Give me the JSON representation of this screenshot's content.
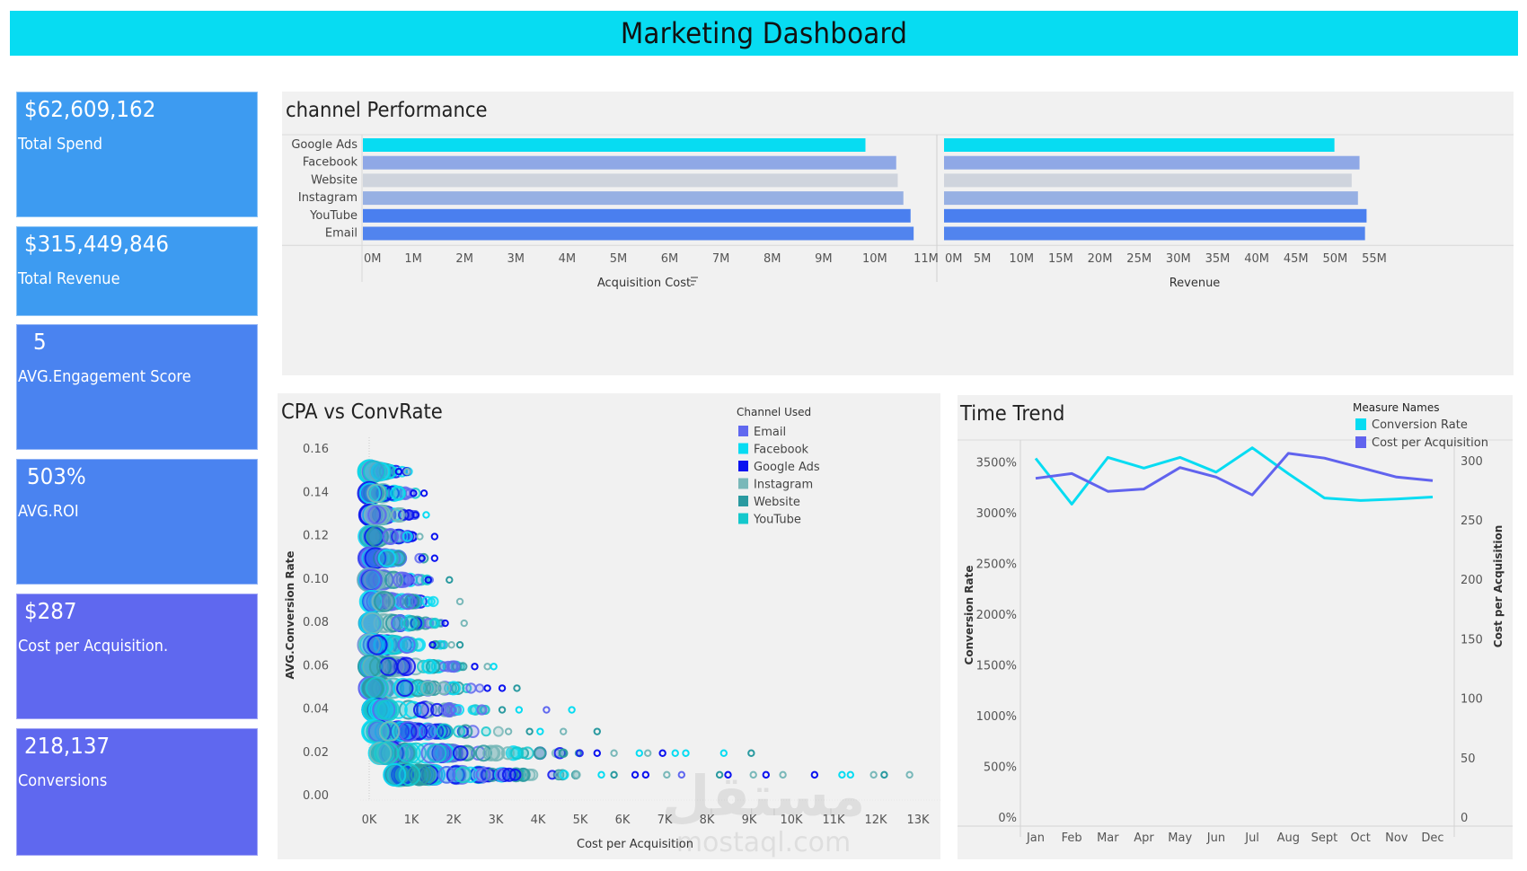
{
  "header": {
    "title": "Marketing Dashboard"
  },
  "kpis": [
    {
      "value": "$62,609,162",
      "label": "Total Spend",
      "color": "#3d9bf1"
    },
    {
      "value": "$315,449,846",
      "label": "Total Revenue",
      "color": "#3d9bf1"
    },
    {
      "value": "5",
      "label": "AVG.Engagement Score",
      "color": "#4a83f0"
    },
    {
      "value": "503%",
      "label": "AVG.ROI",
      "color": "#4a83f0"
    },
    {
      "value": "$287",
      "label": "Cost per Acquisition.",
      "color": "#5f68ef"
    },
    {
      "value": "218,137",
      "label": "Conversions",
      "color": "#5f68ef"
    }
  ],
  "channel_performance": {
    "title": "channel Performance"
  },
  "scatter": {
    "title": "CPA vs ConvRate"
  },
  "time_trend": {
    "title": "Time Trend"
  },
  "watermark": {
    "arabic": "مستقل",
    "latin": "mostaql.com"
  },
  "chart_data": [
    {
      "type": "bar",
      "orientation": "horizontal",
      "title": "channel Performance",
      "categories": [
        "Google Ads",
        "Facebook",
        "Website",
        "Instagram",
        "YouTube",
        "Email"
      ],
      "colors": [
        "#07dcf2",
        "#8fa8e6",
        "#cfd4dd",
        "#97b0e3",
        "#4a7fef",
        "#5184ee"
      ],
      "charts": [
        {
          "xlabel": "Acquisition Cost",
          "sort_icon": "sort-descending-icon",
          "values": [
            9800000,
            10400000,
            10430000,
            10540000,
            10680000,
            10740000
          ],
          "xlim": [
            0,
            11000000
          ],
          "ticks": [
            0,
            1000000,
            2000000,
            3000000,
            4000000,
            5000000,
            6000000,
            7000000,
            8000000,
            9000000,
            10000000,
            11000000
          ],
          "tick_labels": [
            "0M",
            "1M",
            "2M",
            "3M",
            "4M",
            "5M",
            "6M",
            "7M",
            "8M",
            "9M",
            "10M",
            "11M"
          ]
        },
        {
          "xlabel": "Revenue",
          "values": [
            49800000,
            53000000,
            52000000,
            52800000,
            53900000,
            53700000
          ],
          "xlim": [
            0,
            56000000
          ],
          "ticks": [
            0,
            5000000,
            10000000,
            15000000,
            20000000,
            25000000,
            30000000,
            35000000,
            40000000,
            45000000,
            50000000,
            55000000
          ],
          "tick_labels": [
            "0M",
            "5M",
            "10M",
            "15M",
            "20M",
            "25M",
            "30M",
            "35M",
            "40M",
            "45M",
            "50M",
            "55M"
          ]
        }
      ]
    },
    {
      "type": "scatter",
      "title": "CPA vs ConvRate",
      "xlabel": "Cost per Acquisition",
      "ylabel": "AVG.Conversion Rate",
      "xlim": [
        0,
        13000
      ],
      "ylim": [
        0,
        0.16
      ],
      "xticks": [
        0,
        1000,
        2000,
        3000,
        4000,
        5000,
        6000,
        7000,
        8000,
        9000,
        10000,
        11000,
        12000,
        13000
      ],
      "xtick_labels": [
        "0K",
        "1K",
        "2K",
        "3K",
        "4K",
        "5K",
        "6K",
        "7K",
        "8K",
        "9K",
        "10K",
        "11K",
        "12K",
        "13K"
      ],
      "yticks": [
        0,
        0.02,
        0.04,
        0.06,
        0.08,
        0.1,
        0.12,
        0.14,
        0.16
      ],
      "ytick_labels": [
        "0.00",
        "0.02",
        "0.04",
        "0.06",
        "0.08",
        "0.10",
        "0.12",
        "0.14",
        "0.16"
      ],
      "legend": {
        "title": "Channel Used",
        "position": "top-right",
        "items": [
          {
            "name": "Email",
            "color": "#6068ef"
          },
          {
            "name": "Facebook",
            "color": "#07dcf2"
          },
          {
            "name": "Google Ads",
            "color": "#0a12f0"
          },
          {
            "name": "Instagram",
            "color": "#79b8b9"
          },
          {
            "name": "Website",
            "color": "#2a9aa0"
          },
          {
            "name": "YouTube",
            "color": "#14c8cc"
          }
        ]
      },
      "rows": [
        {
          "rate": 0.15,
          "max_cpa": 950,
          "outliers": [
            [
              700,
              "Google Ads"
            ],
            [
              900,
              "Instagram"
            ]
          ]
        },
        {
          "rate": 0.14,
          "max_cpa": 1150,
          "outliers": [
            [
              1300,
              "Google Ads"
            ],
            [
              1050,
              "Google Ads"
            ]
          ]
        },
        {
          "rate": 0.13,
          "max_cpa": 1100,
          "outliers": [
            [
              1100,
              "Google Ads"
            ],
            [
              1350,
              "Facebook"
            ]
          ]
        },
        {
          "rate": 0.12,
          "max_cpa": 1100,
          "outliers": [
            [
              1200,
              "Instagram"
            ],
            [
              1550,
              "Google Ads"
            ]
          ]
        },
        {
          "rate": 0.11,
          "max_cpa": 1300,
          "outliers": [
            [
              1250,
              "Google Ads"
            ],
            [
              1550,
              "Google Ads"
            ]
          ]
        },
        {
          "rate": 0.1,
          "max_cpa": 1450,
          "outliers": [
            [
              1400,
              "Google Ads"
            ],
            [
              1900,
              "Website"
            ]
          ]
        },
        {
          "rate": 0.09,
          "max_cpa": 1600,
          "outliers": [
            [
              2150,
              "Instagram"
            ]
          ]
        },
        {
          "rate": 0.08,
          "max_cpa": 1750,
          "outliers": [
            [
              1800,
              "Google Ads"
            ],
            [
              2250,
              "Instagram"
            ]
          ]
        },
        {
          "rate": 0.07,
          "max_cpa": 1800,
          "outliers": [
            [
              1500,
              "Google Ads"
            ],
            [
              1950,
              "Instagram"
            ],
            [
              2150,
              "Website"
            ]
          ]
        },
        {
          "rate": 0.06,
          "max_cpa": 2300,
          "outliers": [
            [
              2500,
              "Google Ads"
            ],
            [
              2800,
              "Instagram"
            ],
            [
              2950,
              "Facebook"
            ]
          ]
        },
        {
          "rate": 0.05,
          "max_cpa": 2700,
          "outliers": [
            [
              2800,
              "Google Ads"
            ],
            [
              3150,
              "Google Ads"
            ],
            [
              3500,
              "Website"
            ]
          ]
        },
        {
          "rate": 0.04,
          "max_cpa": 2800,
          "outliers": [
            [
              3150,
              "Website"
            ],
            [
              3550,
              "Facebook"
            ],
            [
              4200,
              "Email"
            ],
            [
              4800,
              "Facebook"
            ]
          ]
        },
        {
          "rate": 0.03,
          "max_cpa": 3100,
          "outliers": [
            [
              3300,
              "Instagram"
            ],
            [
              3800,
              "Website"
            ],
            [
              4050,
              "Facebook"
            ],
            [
              4600,
              "Instagram"
            ],
            [
              5400,
              "Website"
            ]
          ]
        },
        {
          "rate": 0.02,
          "max_cpa": 5000,
          "outliers": [
            [
              5400,
              "Google Ads"
            ],
            [
              5800,
              "Instagram"
            ],
            [
              6400,
              "Facebook"
            ],
            [
              6600,
              "Instagram"
            ],
            [
              6950,
              "Google Ads"
            ],
            [
              7250,
              "Facebook"
            ],
            [
              7500,
              "Facebook"
            ],
            [
              8400,
              "Facebook"
            ],
            [
              9050,
              "Website"
            ]
          ]
        },
        {
          "rate": 0.01,
          "max_cpa": 5000,
          "outliers": [
            [
              5500,
              "Facebook"
            ],
            [
              5800,
              "Website"
            ],
            [
              6300,
              "Google Ads"
            ],
            [
              6550,
              "Google Ads"
            ],
            [
              7050,
              "Instagram"
            ],
            [
              7400,
              "Email"
            ],
            [
              8300,
              "Website"
            ],
            [
              8500,
              "Google Ads"
            ],
            [
              9100,
              "Instagram"
            ],
            [
              9400,
              "Google Ads"
            ],
            [
              9800,
              "Instagram"
            ],
            [
              10550,
              "Google Ads"
            ],
            [
              11200,
              "Facebook"
            ],
            [
              11400,
              "Facebook"
            ],
            [
              11950,
              "Instagram"
            ],
            [
              12200,
              "Website"
            ],
            [
              12800,
              "Instagram"
            ]
          ]
        }
      ]
    },
    {
      "type": "line",
      "title": "Time Trend",
      "categories": [
        "Jan",
        "Feb",
        "Mar",
        "Apr",
        "May",
        "Jun",
        "Jul",
        "Aug",
        "Sept",
        "Oct",
        "Nov",
        "Dec"
      ],
      "ylabel": "Conversion Rate",
      "ylabel_right": "Cost per Acquisition",
      "ylim": [
        0,
        3800
      ],
      "ylim_right": [
        0,
        320
      ],
      "yticks": [
        0,
        500,
        1000,
        1500,
        2000,
        2500,
        3000,
        3500
      ],
      "ytick_labels": [
        "0%",
        "500%",
        "1000%",
        "1500%",
        "2000%",
        "2500%",
        "3000%",
        "3500%"
      ],
      "yticks_right": [
        0,
        50,
        100,
        150,
        200,
        250,
        300
      ],
      "ytick_labels_right": [
        "0",
        "50",
        "100",
        "150",
        "200",
        "250",
        "300"
      ],
      "legend": {
        "title": "Measure Names",
        "position": "top-right"
      },
      "series": [
        {
          "name": "Conversion Rate",
          "axis": "left",
          "color": "#07dcf2",
          "values": [
            3535,
            3085,
            3545,
            3440,
            3545,
            3400,
            3640,
            3385,
            3145,
            3120,
            3135,
            3155
          ]
        },
        {
          "name": "Cost per Acquisition",
          "axis": "right",
          "color": "#6163ee",
          "values": [
            285,
            289,
            274,
            276,
            294,
            286,
            271,
            306,
            302,
            294,
            286,
            283
          ]
        }
      ]
    }
  ]
}
